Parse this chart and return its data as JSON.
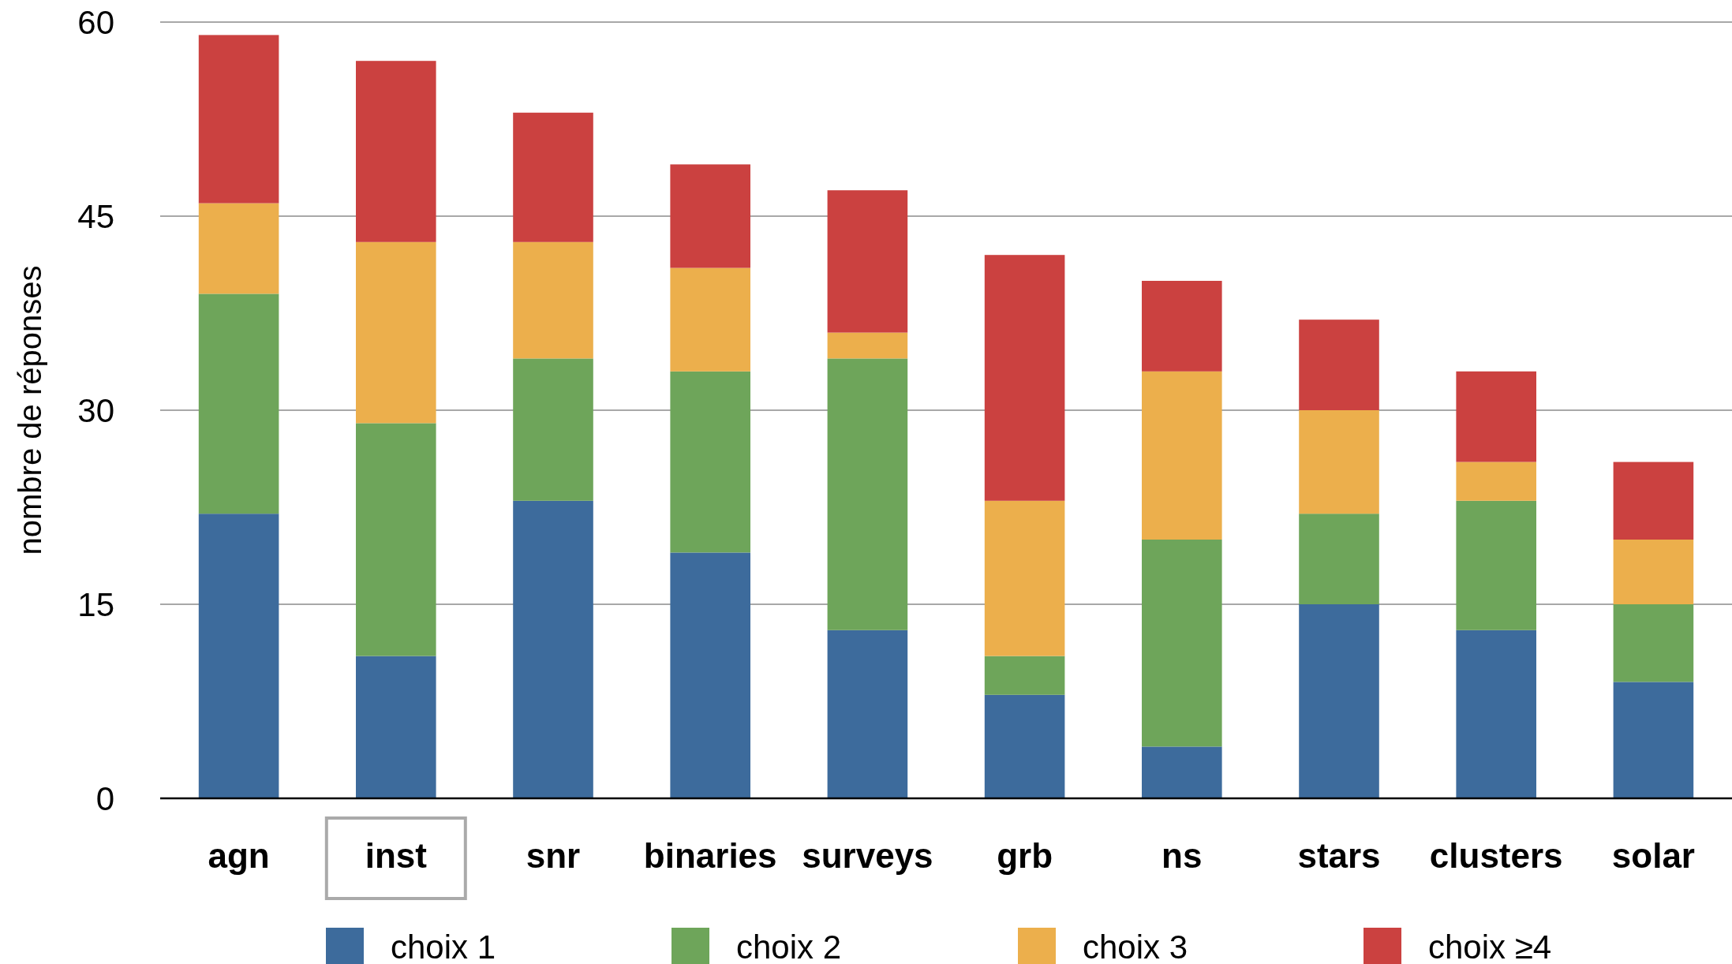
{
  "chart_data": {
    "type": "bar",
    "stacked": true,
    "ylabel": "nombre de réponses",
    "categories": [
      "agn",
      "inst",
      "snr",
      "binaries",
      "surveys",
      "grb",
      "ns",
      "stars",
      "clusters",
      "solar"
    ],
    "series": [
      {
        "name": "choix 1",
        "color": "#3d6b9c",
        "values": [
          22,
          11,
          23,
          19,
          13,
          8,
          4,
          15,
          13,
          9
        ]
      },
      {
        "name": "choix 2",
        "color": "#6ea55a",
        "values": [
          17,
          18,
          11,
          14,
          21,
          3,
          16,
          7,
          10,
          6
        ]
      },
      {
        "name": "choix 3",
        "color": "#ecaf4c",
        "values": [
          7,
          14,
          9,
          8,
          2,
          12,
          13,
          8,
          3,
          5
        ]
      },
      {
        "name": "choix ≥4",
        "color": "#cb4140",
        "values": [
          13,
          14,
          10,
          8,
          11,
          19,
          7,
          7,
          7,
          6
        ]
      }
    ],
    "ylim": [
      0,
      60
    ],
    "yticks": [
      0,
      15,
      30,
      45,
      60
    ],
    "grid": "y",
    "legend": "bottom"
  }
}
